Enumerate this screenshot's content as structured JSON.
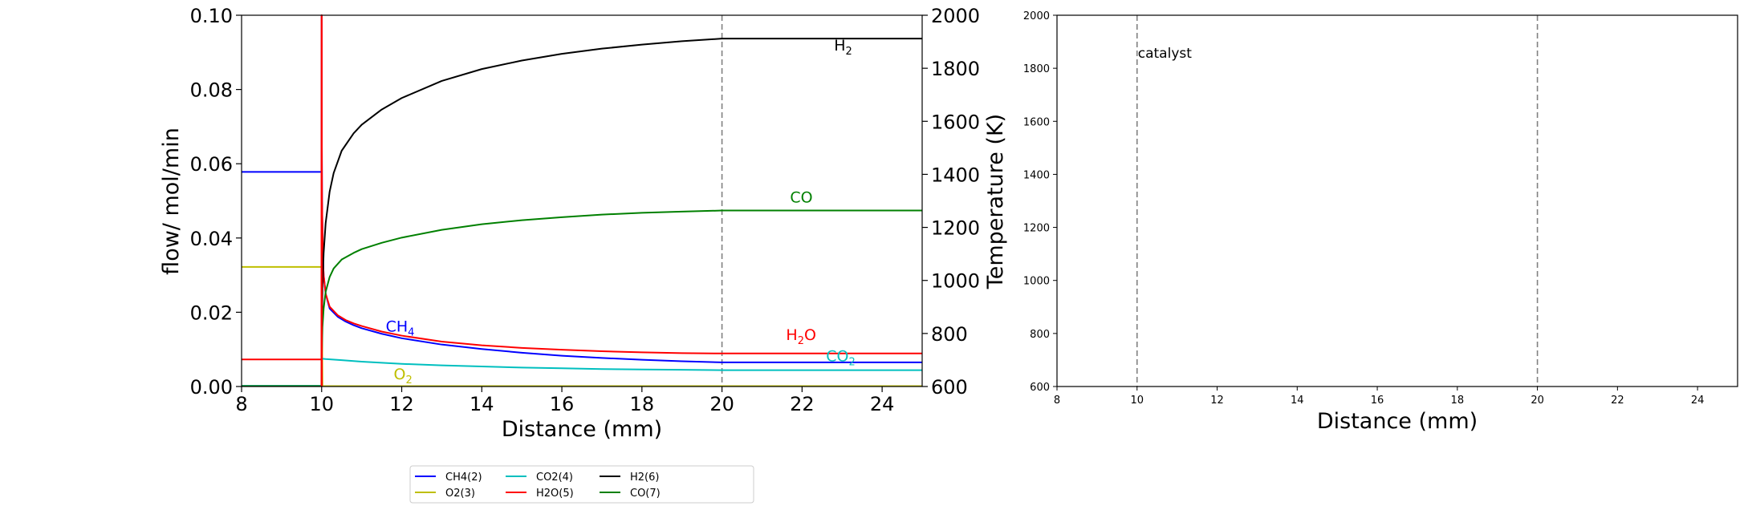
{
  "chart_data": [
    {
      "type": "line",
      "xlabel": "Distance (mm)",
      "ylabel": "flow/ mol/min",
      "y2label": "Temperature (K)",
      "xlim": [
        8,
        25
      ],
      "ylim": [
        0,
        0.1
      ],
      "y2lim": [
        600,
        2000
      ],
      "xticks": [
        "8",
        "10",
        "12",
        "14",
        "16",
        "18",
        "20",
        "22",
        "24"
      ],
      "yticks": [
        "0.00",
        "0.02",
        "0.04",
        "0.06",
        "0.08",
        "0.10"
      ],
      "y2ticks": [
        "600",
        "800",
        "1000",
        "1200",
        "1400",
        "1600",
        "1800",
        "2000"
      ],
      "vlines": [
        10,
        20
      ],
      "grid": false,
      "legend_position": "bottom-center",
      "series": [
        {
          "name": "CH4(2)",
          "color": "#0000ff",
          "x": [
            8,
            9.995,
            10,
            10.003,
            10.01,
            10.03,
            10.05,
            10.1,
            10.2,
            10.4,
            10.6,
            10.8,
            11,
            11.5,
            12,
            13,
            14,
            15,
            16,
            17,
            18,
            19,
            20,
            20.02,
            25
          ],
          "y": [
            0.0578,
            0.0578,
            0.1,
            0.07,
            0.05,
            0.035,
            0.03,
            0.025,
            0.021,
            0.0188,
            0.0175,
            0.0165,
            0.0157,
            0.0142,
            0.013,
            0.0113,
            0.0101,
            0.0091,
            0.0083,
            0.0077,
            0.0072,
            0.0068,
            0.0065,
            0.0065,
            0.0065
          ]
        },
        {
          "name": "O2(3)",
          "color": "#bfbf00",
          "x": [
            8,
            9.995,
            10,
            10.02,
            25
          ],
          "y": [
            0.0322,
            0.0322,
            0.03,
            0.0001,
            0.0001
          ]
        },
        {
          "name": "CO2(4)",
          "color": "#00bfbf",
          "x": [
            8,
            9.995,
            10,
            10.1,
            10.5,
            11,
            12,
            13,
            14,
            15,
            16,
            17,
            18,
            19,
            20,
            20.02,
            25
          ],
          "y": [
            0.0002,
            0.0002,
            0.0075,
            0.0074,
            0.0071,
            0.0067,
            0.0061,
            0.0057,
            0.0054,
            0.0051,
            0.0049,
            0.0047,
            0.0046,
            0.0045,
            0.0044,
            0.0044,
            0.0044
          ]
        },
        {
          "name": "H2O(5)",
          "color": "#ff0000",
          "x": [
            8,
            9.995,
            10,
            10.003,
            10.01,
            10.03,
            10.05,
            10.1,
            10.2,
            10.4,
            10.6,
            10.8,
            11,
            11.5,
            12,
            13,
            14,
            15,
            16,
            17,
            18,
            19,
            20,
            20.02,
            25
          ],
          "y": [
            0.0073,
            0.0073,
            0.1,
            0.07,
            0.05,
            0.035,
            0.03,
            0.025,
            0.0215,
            0.0192,
            0.0179,
            0.017,
            0.0163,
            0.0148,
            0.0137,
            0.0121,
            0.0111,
            0.0104,
            0.0099,
            0.0095,
            0.0092,
            0.009,
            0.0089,
            0.0089,
            0.0089
          ]
        },
        {
          "name": "H2(6)",
          "color": "#000000",
          "x": [
            8,
            9.995,
            10,
            10.005,
            10.02,
            10.05,
            10.1,
            10.2,
            10.3,
            10.5,
            10.8,
            11,
            11.5,
            12,
            13,
            14,
            15,
            16,
            17,
            18,
            19,
            20,
            20.02,
            25
          ],
          "y": [
            0.0001,
            0.0001,
            0.003,
            0.014,
            0.027,
            0.036,
            0.044,
            0.0525,
            0.0575,
            0.0635,
            0.0682,
            0.0705,
            0.0746,
            0.0777,
            0.0823,
            0.0855,
            0.0878,
            0.0896,
            0.091,
            0.0921,
            0.093,
            0.0937,
            0.0937,
            0.0937
          ]
        },
        {
          "name": "CO(7)",
          "color": "#008000",
          "x": [
            8,
            9.995,
            10,
            10.005,
            10.02,
            10.05,
            10.1,
            10.2,
            10.3,
            10.5,
            10.8,
            11,
            11.5,
            12,
            13,
            14,
            15,
            16,
            17,
            18,
            19,
            20,
            20.02,
            25
          ],
          "y": [
            0.0001,
            0.0001,
            0.003,
            0.009,
            0.016,
            0.021,
            0.0255,
            0.0295,
            0.0318,
            0.0342,
            0.036,
            0.037,
            0.0387,
            0.0401,
            0.0422,
            0.0437,
            0.0448,
            0.0456,
            0.0463,
            0.0468,
            0.0471,
            0.0474,
            0.0474,
            0.0474
          ]
        },
        {
          "name": "Temperature",
          "color": "#ff0000",
          "x": [
            9.996,
            10.0,
            10.001,
            10.003,
            10.006
          ],
          "y": [
            0.0,
            0.1,
            0.098,
            0.094,
            0.0
          ]
        }
      ],
      "annotations": [
        {
          "text": "H",
          "sub": "2",
          "x": 22.8,
          "y": 0.0905,
          "color": "#000000"
        },
        {
          "text": "CO",
          "sub": "",
          "x": 21.7,
          "y": 0.0496,
          "color": "#008000"
        },
        {
          "text": "CH",
          "sub": "4",
          "x": 11.6,
          "y": 0.0148,
          "color": "#0000ff"
        },
        {
          "text": "H",
          "sub": "2",
          "text2": "O",
          "x": 21.6,
          "y": 0.0125,
          "color": "#ff0000"
        },
        {
          "text": "CO",
          "sub": "2",
          "x": 22.6,
          "y": 0.0068,
          "color": "#00bfbf"
        },
        {
          "text": "O",
          "sub": "2",
          "x": 11.8,
          "y": 0.0019,
          "color": "#bfbf00"
        }
      ]
    },
    {
      "type": "line",
      "xlabel": "Distance (mm)",
      "ylabel": "",
      "xlim": [
        8,
        25
      ],
      "ylim": [
        600,
        2000
      ],
      "xticks": [
        "8",
        "10",
        "12",
        "14",
        "16",
        "18",
        "20",
        "22",
        "24"
      ],
      "yticks": [
        "600",
        "800",
        "1000",
        "1200",
        "1400",
        "1600",
        "1800",
        "2000"
      ],
      "vlines": [
        10,
        20
      ],
      "grid": false,
      "series": [],
      "annotations": [
        {
          "text": "catalyst",
          "x": 10.0,
          "y": 1840,
          "color": "#000000"
        }
      ]
    }
  ],
  "legend": {
    "items": [
      {
        "label": "CH4(2)",
        "color": "#0000ff"
      },
      {
        "label": "O2(3)",
        "color": "#bfbf00"
      },
      {
        "label": "CO2(4)",
        "color": "#00bfbf"
      },
      {
        "label": "H2O(5)",
        "color": "#ff0000"
      },
      {
        "label": "H2(6)",
        "color": "#000000"
      },
      {
        "label": "CO(7)",
        "color": "#008000"
      }
    ]
  }
}
